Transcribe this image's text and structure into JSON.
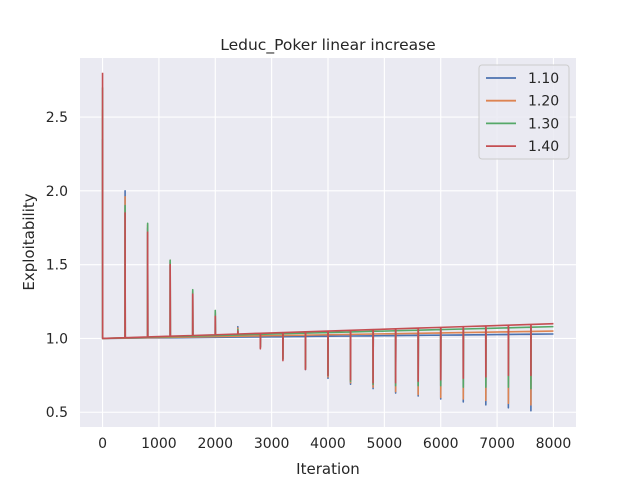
{
  "chart_data": {
    "type": "line",
    "title": "Leduc_Poker linear increase",
    "xlabel": "Iteration",
    "ylabel": "Exploitability",
    "xlim": [
      -400,
      8400
    ],
    "ylim": [
      0.4,
      2.9
    ],
    "xticks": [
      0,
      1000,
      2000,
      3000,
      4000,
      5000,
      6000,
      7000,
      8000
    ],
    "yticks": [
      0.5,
      1.0,
      1.5,
      2.0,
      2.5
    ],
    "grid": true,
    "background": "#eaeaf2",
    "legend_position": "top-right",
    "baseline_start": 1.0,
    "period": 400,
    "spike_iterations": [
      0,
      400,
      800,
      1200,
      1600,
      2000,
      2400,
      2800,
      3200,
      3600,
      4000,
      4400,
      4800,
      5200,
      5600,
      6000,
      6400,
      6800,
      7200,
      7600
    ],
    "series": [
      {
        "name": "1.10",
        "color": "#4c72b0",
        "baseline_end": 1.03,
        "spike_extremes": [
          2.35,
          2.0,
          1.75,
          1.52,
          1.31,
          1.17,
          1.08,
          0.94,
          0.86,
          0.79,
          0.73,
          0.69,
          0.66,
          0.63,
          0.61,
          0.59,
          0.57,
          0.55,
          0.53,
          0.51
        ]
      },
      {
        "name": "1.20",
        "color": "#dd8452",
        "baseline_end": 1.05,
        "spike_extremes": [
          2.55,
          1.96,
          1.77,
          1.53,
          1.32,
          1.18,
          1.07,
          0.94,
          0.86,
          0.8,
          0.74,
          0.7,
          0.67,
          0.64,
          0.62,
          0.6,
          0.59,
          0.58,
          0.56,
          0.55
        ]
      },
      {
        "name": "1.30",
        "color": "#55a868",
        "baseline_end": 1.08,
        "spike_extremes": [
          2.7,
          1.9,
          1.78,
          1.53,
          1.33,
          1.19,
          1.06,
          0.94,
          0.86,
          0.8,
          0.75,
          0.71,
          0.69,
          0.68,
          0.68,
          0.68,
          0.67,
          0.67,
          0.67,
          0.66
        ]
      },
      {
        "name": "1.40",
        "color": "#c44e52",
        "baseline_end": 1.1,
        "spike_extremes": [
          2.8,
          1.85,
          1.72,
          1.5,
          1.3,
          1.15,
          1.05,
          0.93,
          0.85,
          0.79,
          0.75,
          0.72,
          0.7,
          0.7,
          0.71,
          0.72,
          0.73,
          0.74,
          0.75,
          0.75
        ]
      }
    ]
  }
}
